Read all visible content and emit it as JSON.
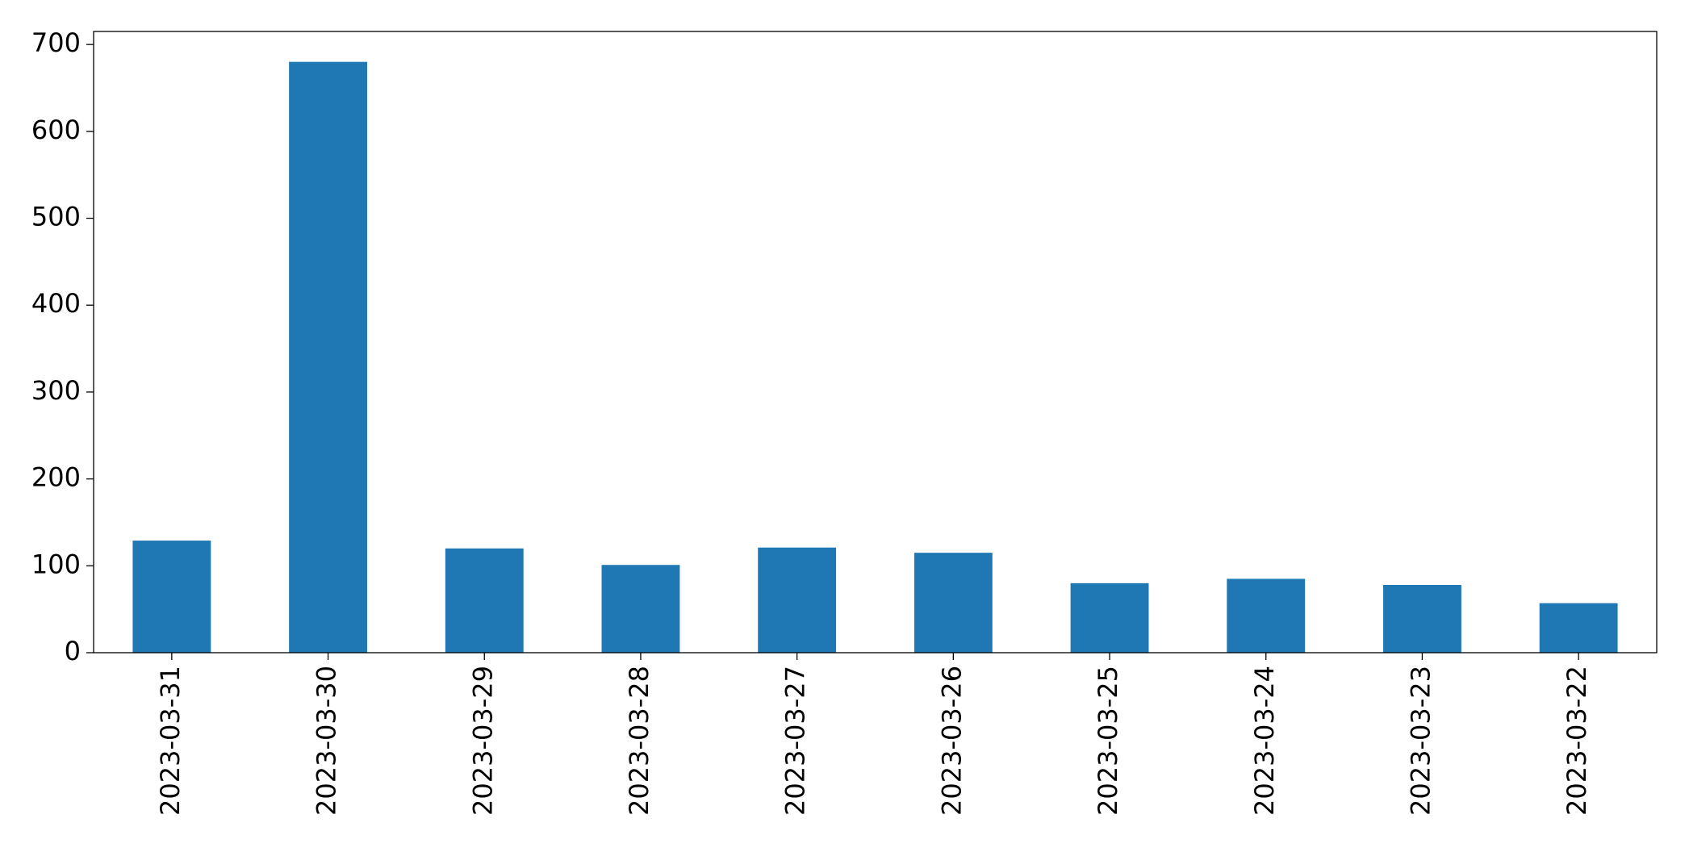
{
  "chart_data": {
    "type": "bar",
    "categories": [
      "2023-03-31",
      "2023-03-30",
      "2023-03-29",
      "2023-03-28",
      "2023-03-27",
      "2023-03-26",
      "2023-03-25",
      "2023-03-24",
      "2023-03-23",
      "2023-03-22"
    ],
    "values": [
      129,
      680,
      120,
      101,
      121,
      115,
      80,
      85,
      78,
      57
    ],
    "color": "#1f77b4",
    "ylim": [
      0,
      715
    ],
    "yticks": [
      0,
      100,
      200,
      300,
      400,
      500,
      600,
      700
    ],
    "grid": false
  }
}
